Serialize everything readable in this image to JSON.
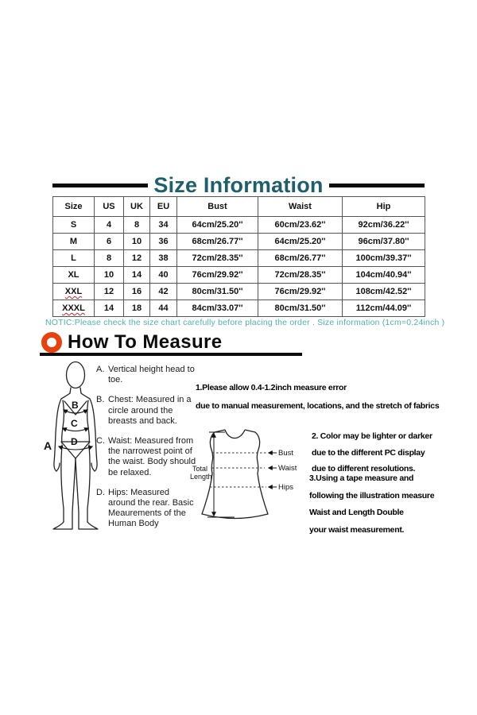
{
  "colors": {
    "title_teal": "#1d5f6b",
    "notice_teal": "#4cb4ab",
    "icon_orange": "#e8410d",
    "text_black": "#0d0d0d",
    "squiggle_red": "#cc2222"
  },
  "header": {
    "title": "Size Information"
  },
  "size_table": {
    "headers": [
      "Size",
      "US",
      "UK",
      "EU",
      "Bust",
      "Waist",
      "Hip"
    ],
    "rows": [
      [
        "S",
        "4",
        "8",
        "34",
        "64cm/25.20''",
        "60cm/23.62''",
        "92cm/36.22''"
      ],
      [
        "M",
        "6",
        "10",
        "36",
        "68cm/26.77''",
        "64cm/25.20''",
        "96cm/37.80''"
      ],
      [
        "L",
        "8",
        "12",
        "38",
        "72cm/28.35''",
        "68cm/26.77''",
        "100cm/39.37''"
      ],
      [
        "XL",
        "10",
        "14",
        "40",
        "76cm/29.92''",
        "72cm/28.35''",
        "104cm/40.94''"
      ],
      [
        "XXL",
        "12",
        "16",
        "42",
        "80cm/31.50''",
        "76cm/29.92''",
        "108cm/42.52''"
      ],
      [
        "XXXL",
        "14",
        "18",
        "44",
        "84cm/33.07''",
        "80cm/31.50''",
        "112cm/44.09''"
      ]
    ],
    "underlined_sizes": [
      "XXL",
      "XXXL"
    ]
  },
  "notice": "NOTIC:Please check the size chart carefully before placing the order . Size information (1cm=0.24inch )",
  "how_to_measure": {
    "title": "How To Measure",
    "items": [
      {
        "label": "A.",
        "text": "Vertical height head to toe."
      },
      {
        "label": "B.",
        "text": "Chest: Measured in a circle around the breasts and back."
      },
      {
        "label": "C.",
        "text": "Waist: Measured from the narrowest point of the waist. Body should be relaxed."
      },
      {
        "label": "D.",
        "text": "Hips: Measured around the rear. Basic Meaurements of the Human Body"
      }
    ],
    "figure_letters": {
      "a": "A",
      "b": "B",
      "c": "C",
      "d": "D"
    }
  },
  "dress_diagram": {
    "length_label_line1": "Total",
    "length_label_line2": "Length",
    "bust_label": "Bust",
    "waist_label": "Waist",
    "hips_label": "Hips"
  },
  "notes": {
    "note1": [
      "1.Please allow 0.4-1.2inch measure error",
      "due to manual measurement, locations, and the stretch of fabrics"
    ],
    "note2": [
      "2. Color may be lighter or darker",
      "due to the different PC display",
      "due to different resolutions."
    ],
    "note3": [
      "3.Using a tape measure and",
      "following the illustration measure",
      "Waist and Length Double",
      "your waist measurement."
    ]
  }
}
